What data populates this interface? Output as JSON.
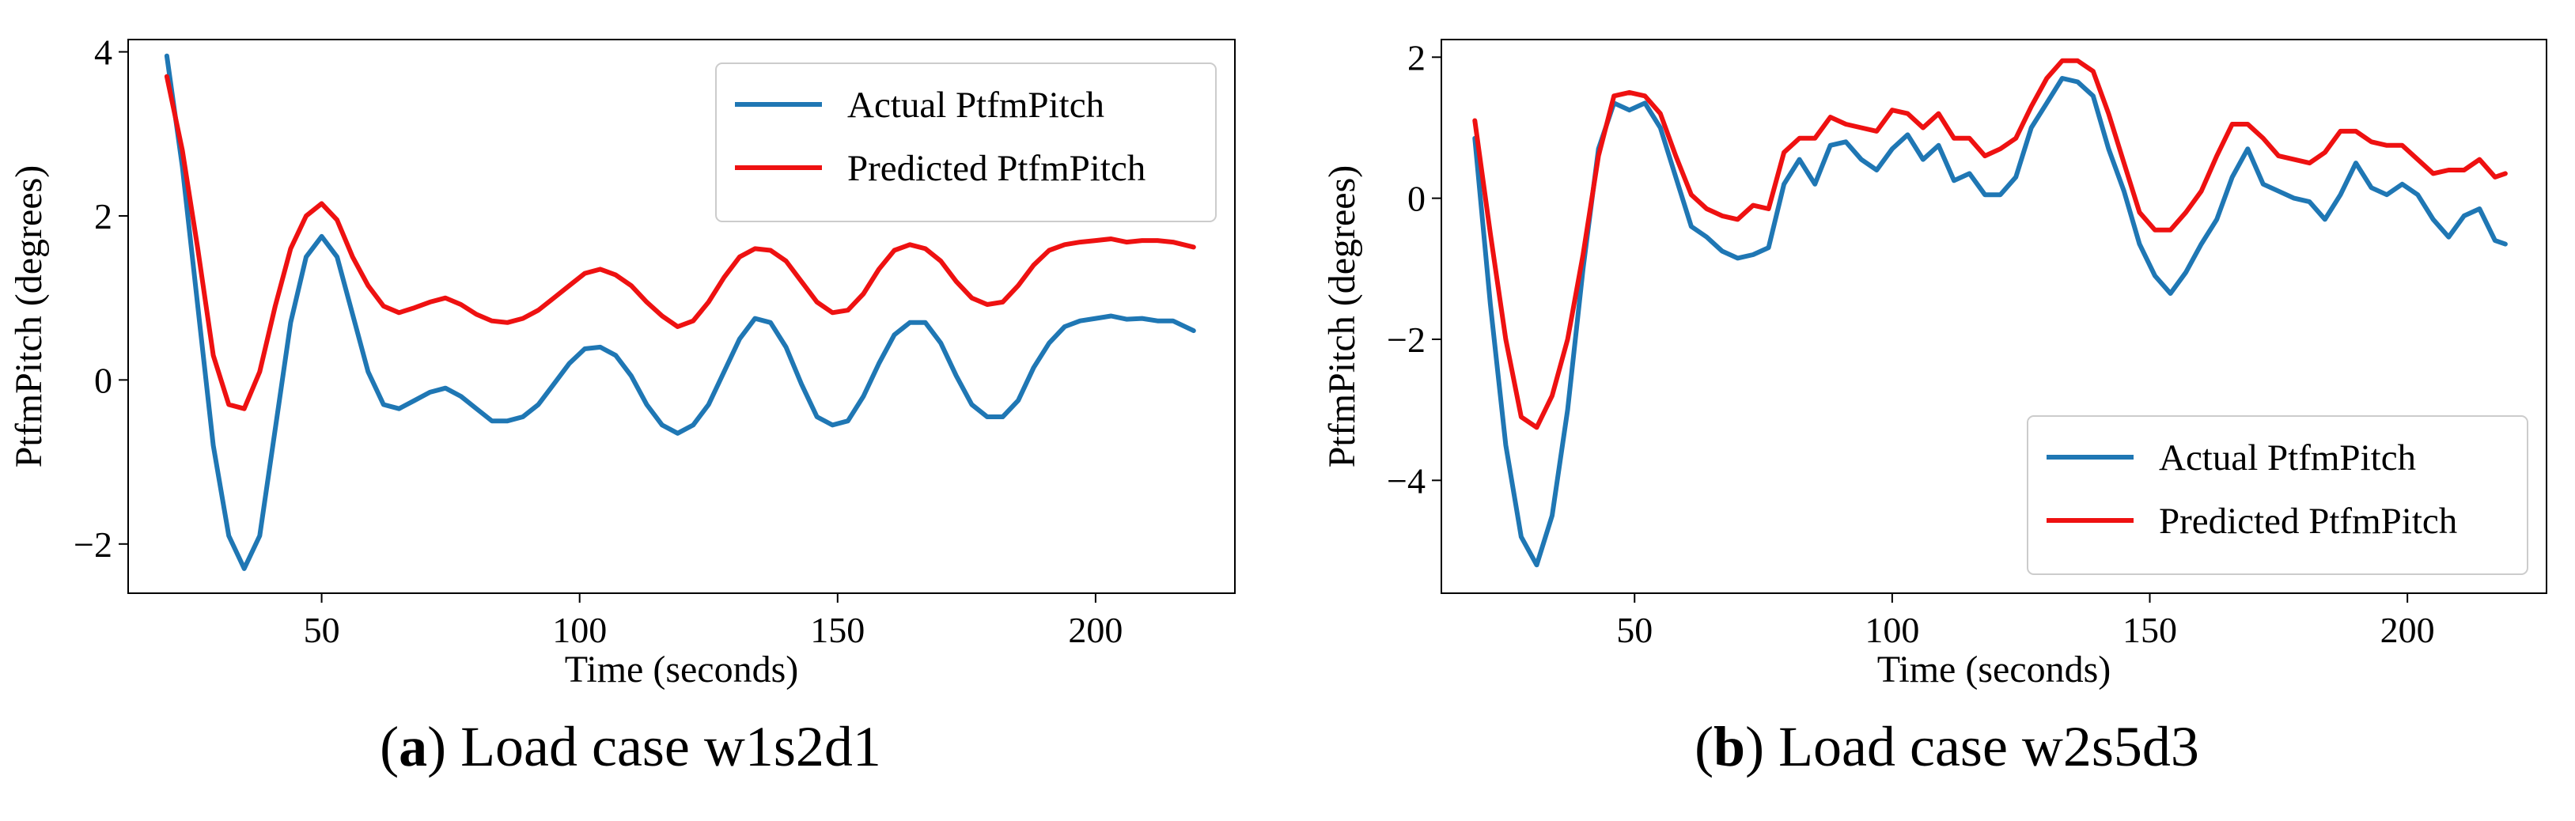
{
  "figure": {
    "colors": {
      "actual": "#1f77b4",
      "predicted": "#ee1111",
      "axis": "#000000"
    }
  },
  "chart_data": [
    {
      "type": "line",
      "caption": {
        "letter": "a",
        "open": "(",
        "close": ")",
        "text": " Load case w1s2d1"
      },
      "xlabel": "Time (seconds)",
      "ylabel": "PtfmPitch (degrees)",
      "xlim": [
        12.5,
        227
      ],
      "ylim": [
        -2.6,
        4.15
      ],
      "xticks": [
        50,
        100,
        150,
        200
      ],
      "yticks": [
        -2,
        0,
        2,
        4
      ],
      "xtick_labels": [
        "50",
        "100",
        "150",
        "200"
      ],
      "ytick_labels": [
        "−2",
        "0",
        "2",
        "4"
      ],
      "legend_position": "top-right",
      "series": [
        {
          "name": "Actual PtfmPitch",
          "color": "#1f77b4",
          "x": [
            20,
            23,
            26,
            29,
            32,
            35,
            38,
            41,
            44,
            47,
            50,
            53,
            56,
            59,
            62,
            65,
            68,
            71,
            74,
            77,
            80,
            83,
            86,
            89,
            92,
            95,
            98,
            101,
            104,
            107,
            110,
            113,
            116,
            119,
            122,
            125,
            128,
            131,
            134,
            137,
            140,
            143,
            146,
            149,
            152,
            155,
            158,
            161,
            164,
            167,
            170,
            173,
            176,
            179,
            182,
            185,
            188,
            191,
            194,
            197,
            200,
            203,
            206,
            209,
            212,
            215,
            219
          ],
          "y": [
            3.95,
            2.6,
            0.9,
            -0.8,
            -1.9,
            -2.3,
            -1.9,
            -0.6,
            0.7,
            1.5,
            1.75,
            1.5,
            0.8,
            0.1,
            -0.3,
            -0.35,
            -0.25,
            -0.15,
            -0.1,
            -0.2,
            -0.35,
            -0.5,
            -0.5,
            -0.45,
            -0.3,
            -0.05,
            0.2,
            0.38,
            0.4,
            0.3,
            0.05,
            -0.3,
            -0.55,
            -0.65,
            -0.55,
            -0.3,
            0.1,
            0.5,
            0.75,
            0.7,
            0.4,
            -0.05,
            -0.45,
            -0.55,
            -0.5,
            -0.2,
            0.2,
            0.55,
            0.7,
            0.7,
            0.45,
            0.05,
            -0.3,
            -0.45,
            -0.45,
            -0.25,
            0.15,
            0.45,
            0.65,
            0.72,
            0.75,
            0.78,
            0.74,
            0.75,
            0.72,
            0.72,
            0.6
          ]
        },
        {
          "name": "Predicted PtfmPitch",
          "color": "#ee1111",
          "x": [
            20,
            23,
            26,
            29,
            32,
            35,
            38,
            41,
            44,
            47,
            50,
            53,
            56,
            59,
            62,
            65,
            68,
            71,
            74,
            77,
            80,
            83,
            86,
            89,
            92,
            95,
            98,
            101,
            104,
            107,
            110,
            113,
            116,
            119,
            122,
            125,
            128,
            131,
            134,
            137,
            140,
            143,
            146,
            149,
            152,
            155,
            158,
            161,
            164,
            167,
            170,
            173,
            176,
            179,
            182,
            185,
            188,
            191,
            194,
            197,
            200,
            203,
            206,
            209,
            212,
            215,
            219
          ],
          "y": [
            3.7,
            2.8,
            1.6,
            0.3,
            -0.3,
            -0.35,
            0.1,
            0.9,
            1.6,
            2.0,
            2.15,
            1.95,
            1.5,
            1.15,
            0.9,
            0.82,
            0.88,
            0.95,
            1.0,
            0.92,
            0.8,
            0.72,
            0.7,
            0.75,
            0.85,
            1.0,
            1.15,
            1.3,
            1.35,
            1.28,
            1.15,
            0.95,
            0.78,
            0.65,
            0.72,
            0.95,
            1.25,
            1.5,
            1.6,
            1.58,
            1.45,
            1.2,
            0.95,
            0.82,
            0.85,
            1.05,
            1.35,
            1.58,
            1.65,
            1.6,
            1.45,
            1.2,
            1.0,
            0.92,
            0.95,
            1.15,
            1.4,
            1.58,
            1.65,
            1.68,
            1.7,
            1.72,
            1.68,
            1.7,
            1.7,
            1.68,
            1.62
          ]
        }
      ]
    },
    {
      "type": "line",
      "caption": {
        "letter": "b",
        "open": "(",
        "close": ")",
        "text": " Load case w2s5d3"
      },
      "xlabel": "Time (seconds)",
      "ylabel": "PtfmPitch (degrees)",
      "xlim": [
        12.5,
        227
      ],
      "ylim": [
        -5.6,
        2.25
      ],
      "xticks": [
        50,
        100,
        150,
        200
      ],
      "yticks": [
        -4,
        -2,
        0,
        2
      ],
      "xtick_labels": [
        "50",
        "100",
        "150",
        "200"
      ],
      "ytick_labels": [
        "−4",
        "−2",
        "0",
        "2"
      ],
      "legend_position": "bottom-right",
      "series": [
        {
          "name": "Actual PtfmPitch",
          "color": "#1f77b4",
          "x": [
            19,
            22,
            25,
            28,
            31,
            34,
            37,
            40,
            43,
            46,
            49,
            52,
            55,
            58,
            61,
            64,
            67,
            70,
            73,
            76,
            79,
            82,
            85,
            88,
            91,
            94,
            97,
            100,
            103,
            106,
            109,
            112,
            115,
            118,
            121,
            124,
            127,
            130,
            133,
            136,
            139,
            142,
            145,
            148,
            151,
            154,
            157,
            160,
            163,
            166,
            169,
            172,
            175,
            178,
            181,
            184,
            187,
            190,
            193,
            196,
            199,
            202,
            205,
            208,
            211,
            214,
            217,
            219
          ],
          "y": [
            0.85,
            -1.5,
            -3.5,
            -4.8,
            -5.2,
            -4.5,
            -3.0,
            -1.0,
            0.7,
            1.35,
            1.25,
            1.35,
            1.0,
            0.3,
            -0.4,
            -0.55,
            -0.75,
            -0.85,
            -0.8,
            -0.7,
            0.2,
            0.55,
            0.2,
            0.75,
            0.8,
            0.55,
            0.4,
            0.7,
            0.9,
            0.55,
            0.75,
            0.25,
            0.35,
            0.05,
            0.05,
            0.3,
            1.0,
            1.35,
            1.7,
            1.65,
            1.45,
            0.7,
            0.1,
            -0.65,
            -1.1,
            -1.35,
            -1.05,
            -0.65,
            -0.3,
            0.3,
            0.7,
            0.2,
            0.1,
            0.0,
            -0.05,
            -0.3,
            0.05,
            0.5,
            0.15,
            0.05,
            0.2,
            0.05,
            -0.3,
            -0.55,
            -0.25,
            -0.15,
            -0.6,
            -0.65
          ]
        },
        {
          "name": "Predicted PtfmPitch",
          "color": "#ee1111",
          "x": [
            19,
            22,
            25,
            28,
            31,
            34,
            37,
            40,
            43,
            46,
            49,
            52,
            55,
            58,
            61,
            64,
            67,
            70,
            73,
            76,
            79,
            82,
            85,
            88,
            91,
            94,
            97,
            100,
            103,
            106,
            109,
            112,
            115,
            118,
            121,
            124,
            127,
            130,
            133,
            136,
            139,
            142,
            145,
            148,
            151,
            154,
            157,
            160,
            163,
            166,
            169,
            172,
            175,
            178,
            181,
            184,
            187,
            190,
            193,
            196,
            199,
            202,
            205,
            208,
            211,
            214,
            217,
            219
          ],
          "y": [
            1.1,
            -0.5,
            -2.0,
            -3.1,
            -3.25,
            -2.8,
            -2.0,
            -0.8,
            0.6,
            1.45,
            1.5,
            1.45,
            1.2,
            0.6,
            0.05,
            -0.15,
            -0.25,
            -0.3,
            -0.1,
            -0.15,
            0.65,
            0.85,
            0.85,
            1.15,
            1.05,
            1.0,
            0.95,
            1.25,
            1.2,
            1.0,
            1.2,
            0.85,
            0.85,
            0.6,
            0.7,
            0.85,
            1.3,
            1.7,
            1.95,
            1.95,
            1.8,
            1.2,
            0.5,
            -0.2,
            -0.45,
            -0.45,
            -0.2,
            0.1,
            0.6,
            1.05,
            1.05,
            0.85,
            0.6,
            0.55,
            0.5,
            0.65,
            0.95,
            0.95,
            0.8,
            0.75,
            0.75,
            0.55,
            0.35,
            0.4,
            0.4,
            0.55,
            0.3,
            0.35
          ]
        }
      ]
    }
  ]
}
